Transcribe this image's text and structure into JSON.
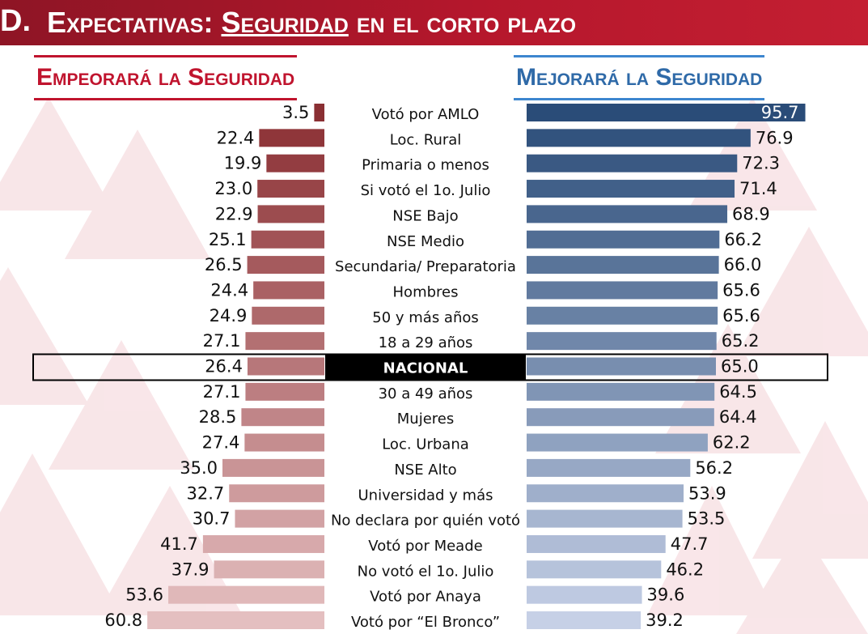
{
  "header": {
    "letter": "D.",
    "title_part1": "Expectativas: ",
    "title_part2": "Seguridad",
    "title_part3": " en el corto plazo"
  },
  "left_title": "Empeorará la Seguridad",
  "right_title": "Mejorará la Seguridad",
  "chart_data": {
    "type": "bar",
    "orientation": "horizontal-butterfly",
    "categories": [
      "Votó por AMLO",
      "Loc. Rural",
      "Primaria o menos",
      "Si votó el 1o. Julio",
      "NSE Bajo",
      "NSE Medio",
      "Secundaria/ Preparatoria",
      "Hombres",
      "50 y más años",
      "18 a 29 años",
      "NACIONAL",
      "30 a 49 años",
      "Mujeres",
      "Loc. Urbana",
      "NSE Alto",
      "Universidad y más",
      "No declara por quién votó",
      "Votó por Meade",
      "No votó el 1o. Julio",
      "Votó por Anaya",
      "Votó por “El Bronco”"
    ],
    "series": [
      {
        "name": "Empeorará la Seguridad",
        "values": [
          3.5,
          22.4,
          19.9,
          23.0,
          22.9,
          25.1,
          26.5,
          24.4,
          24.9,
          27.1,
          26.4,
          27.1,
          28.5,
          27.4,
          35.0,
          32.7,
          30.7,
          41.7,
          37.9,
          53.6,
          60.8
        ]
      },
      {
        "name": "Mejorará la Seguridad",
        "values": [
          95.7,
          76.9,
          72.3,
          71.4,
          68.9,
          66.2,
          66.0,
          65.6,
          65.6,
          65.2,
          65.0,
          64.5,
          64.4,
          62.2,
          56.2,
          53.9,
          53.5,
          47.7,
          46.2,
          39.6,
          39.2
        ]
      }
    ],
    "highlight_category": "NACIONAL",
    "colors": {
      "left_dark": "#8a2f33",
      "left_light": "#e4bfc0",
      "right_dark": "#2a4c78",
      "right_light": "#c6d0e6",
      "highlight_fill": "#000000"
    }
  }
}
